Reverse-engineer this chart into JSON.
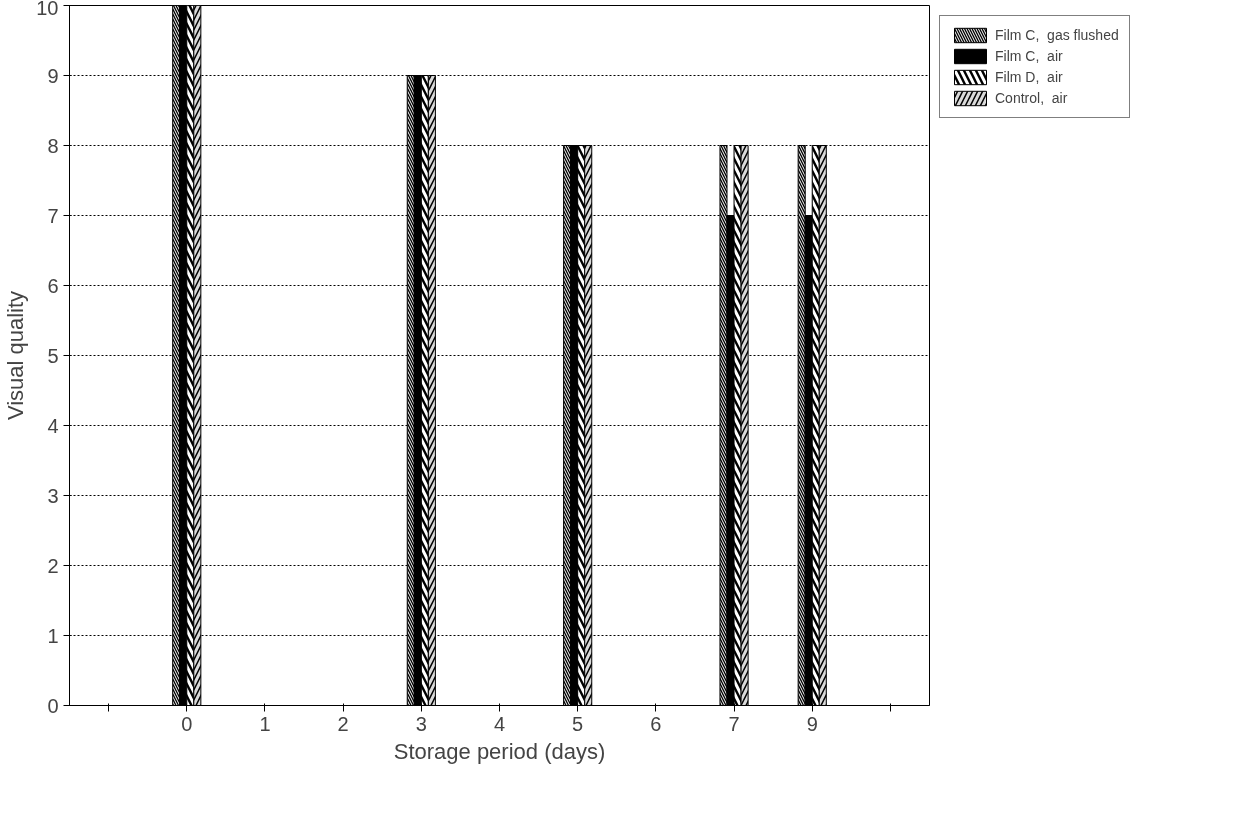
{
  "chart_data": {
    "type": "bar",
    "xlabel": "Storage period (days)",
    "ylabel": "Visual quality",
    "categories": [
      null,
      "0",
      "1",
      "2",
      "3",
      "4",
      "5",
      "6",
      "7",
      "9",
      null
    ],
    "series": [
      {
        "name": "Film C,  gas flushed",
        "color": "#000000",
        "values": [
          null,
          10,
          null,
          null,
          9,
          null,
          8,
          null,
          8,
          8,
          null
        ]
      },
      {
        "name": "Film C,  air",
        "color": "#000000",
        "values": [
          null,
          10,
          null,
          null,
          9,
          null,
          8,
          null,
          7,
          7,
          null
        ]
      },
      {
        "name": "Film D,  air",
        "color": "#000000",
        "values": [
          null,
          10,
          null,
          null,
          9,
          null,
          8,
          null,
          8,
          8,
          null
        ]
      },
      {
        "name": "Control,  air",
        "color": "#d9d9d9",
        "values": [
          null,
          10,
          null,
          null,
          9,
          null,
          8,
          null,
          8,
          8,
          null
        ]
      }
    ],
    "ylim": [
      0,
      10
    ],
    "yticks": [
      0,
      1,
      2,
      3,
      4,
      5,
      6,
      7,
      8,
      9,
      10
    ],
    "grid": "y",
    "legend": "top right"
  }
}
